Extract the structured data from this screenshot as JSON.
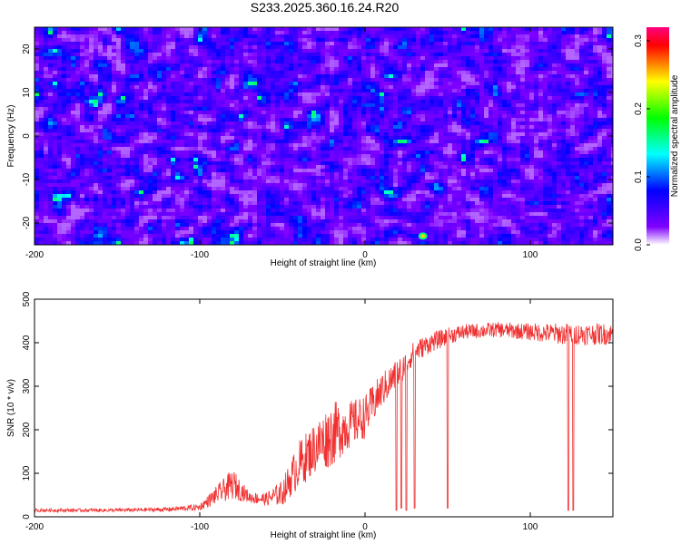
{
  "title": "S233.2025.360.16.24.R20",
  "chart_data": [
    {
      "type": "heatmap",
      "xlabel": "Height of straight line (km)",
      "ylabel": "Frequency (Hz)",
      "xlim": [
        -200,
        150
      ],
      "ylim": [
        -25,
        25
      ],
      "xticks": [
        -200,
        -100,
        0,
        100
      ],
      "yticks": [
        -20,
        -10,
        0,
        10,
        20
      ],
      "colorbar": {
        "label": "Normalized spectral amplitude",
        "range": [
          0,
          0.32
        ],
        "ticks": [
          0.0,
          0.1,
          0.2,
          0.3
        ],
        "colors": [
          "#ffffff",
          "#7f00ff",
          "#3f00ff",
          "#0000ff",
          "#0080ff",
          "#00ffff",
          "#00ff80",
          "#00ff00",
          "#80ff00",
          "#ffff00",
          "#ff8000",
          "#ff0000",
          "#ff0080"
        ]
      },
      "description": "Speckled broadband noise, mostly violet/blue (0.02-0.08) with scattered cyan peaks (~0.1) and a brighter spot near x=35 km, y=-23 Hz"
    },
    {
      "type": "line",
      "xlabel": "Height of straight line (km)",
      "ylabel": "SNR (10 * v/v)",
      "xlim": [
        -200,
        150
      ],
      "ylim": [
        0,
        500
      ],
      "xticks": [
        -200,
        -100,
        0,
        100
      ],
      "yticks": [
        0,
        100,
        200,
        300,
        400,
        500
      ],
      "series": [
        {
          "name": "SNR",
          "color": "#f03030",
          "envelope_x": [
            -200,
            -150,
            -120,
            -100,
            -90,
            -80,
            -70,
            -60,
            -50,
            -40,
            -30,
            -20,
            -10,
            0,
            10,
            20,
            30,
            40,
            50,
            60,
            80,
            100,
            120,
            140,
            150
          ],
          "envelope_mean": [
            15,
            15,
            17,
            22,
            50,
            75,
            45,
            40,
            55,
            120,
            160,
            190,
            210,
            230,
            290,
            330,
            380,
            400,
            415,
            425,
            430,
            425,
            420,
            420,
            420
          ],
          "envelope_spread": [
            8,
            8,
            10,
            15,
            40,
            70,
            25,
            30,
            60,
            110,
            120,
            150,
            110,
            100,
            80,
            70,
            50,
            45,
            40,
            35,
            35,
            40,
            50,
            50,
            50
          ],
          "dips": [
            {
              "x": 19,
              "min": 15
            },
            {
              "x": 22,
              "min": 20
            },
            {
              "x": 25,
              "min": 15
            },
            {
              "x": 30,
              "min": 20
            },
            {
              "x": 50,
              "min": 20
            },
            {
              "x": 123,
              "min": 15
            },
            {
              "x": 126,
              "min": 15
            }
          ]
        }
      ]
    }
  ]
}
